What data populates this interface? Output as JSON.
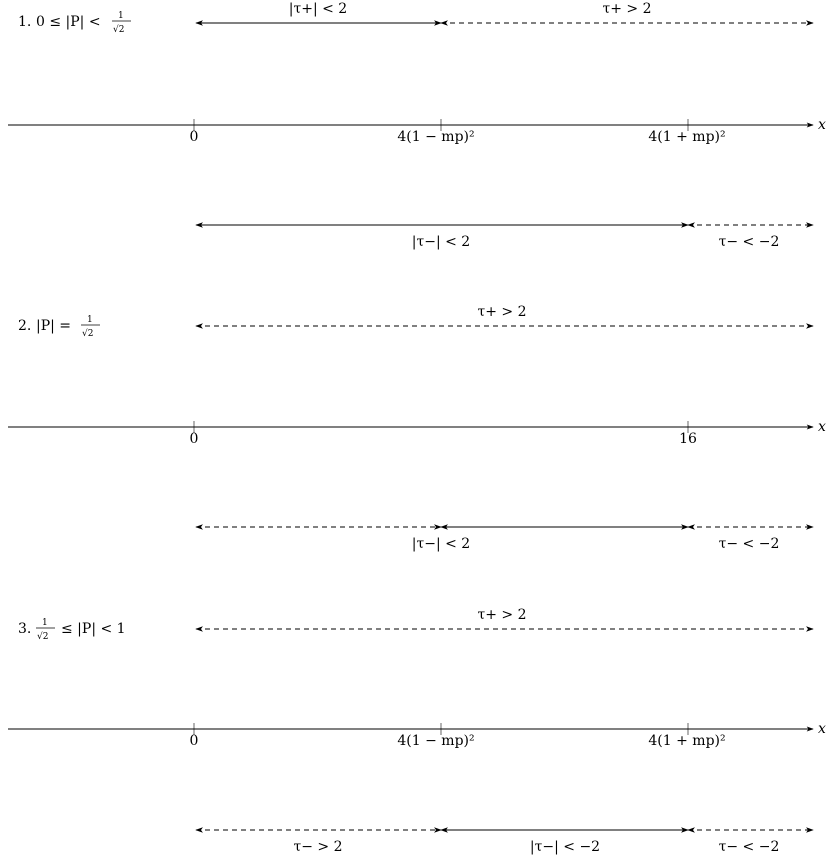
{
  "diagram": {
    "x_symbol": "x",
    "cases": [
      {
        "number": "1.",
        "condition_left": "0 ≤ |P| <",
        "condition_frac": {
          "num": "1",
          "den": "√2"
        },
        "condition_right": "",
        "ticks": [
          "0",
          "4(1 − mp)²",
          "4(1 + mp)²"
        ],
        "tau_plus": [
          {
            "label": "|τ+| < 2",
            "style": "solid"
          },
          {
            "label": "τ+ > 2",
            "style": "dashed"
          }
        ],
        "tau_minus": [
          {
            "label": "|τ−| < 2",
            "style": "solid"
          },
          {
            "label": "τ− < −2",
            "style": "dashed"
          }
        ]
      },
      {
        "number": "2.",
        "condition_left": "|P| =",
        "condition_frac": {
          "num": "1",
          "den": "√2"
        },
        "condition_right": "",
        "ticks": [
          "0",
          "16"
        ],
        "tau_plus": [
          {
            "label": "τ+ > 2",
            "style": "dashed"
          }
        ],
        "tau_minus": [
          {
            "label": "|τ−| < 2",
            "style": "mixed"
          },
          {
            "label": "τ− < −2",
            "style": "dashed"
          }
        ]
      },
      {
        "number": "3.",
        "condition_left": "",
        "condition_frac": {
          "num": "1",
          "den": "√2"
        },
        "condition_right": "≤ |P| < 1",
        "ticks": [
          "0",
          "4(1 − mp)²",
          "4(1 + mp)²"
        ],
        "tau_plus": [
          {
            "label": "τ+ > 2",
            "style": "dashed"
          }
        ],
        "tau_minus": [
          {
            "label": "τ− > 2",
            "style": "dashed"
          },
          {
            "label": "|τ−| < −2",
            "style": "solid"
          },
          {
            "label": "τ− < −2",
            "style": "dashed"
          }
        ]
      }
    ]
  }
}
